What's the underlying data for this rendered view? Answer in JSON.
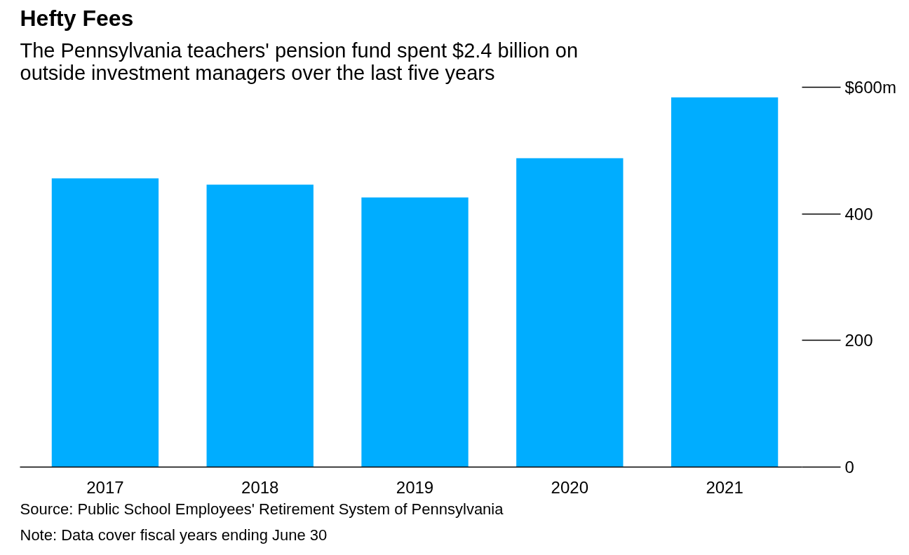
{
  "chart_data": {
    "type": "bar",
    "title": "Hefty Fees",
    "subtitle": "The Pennsylvania teachers' pension fund spent $2.4 billion on outside investment managers over the last five years",
    "categories": [
      "2017",
      "2018",
      "2019",
      "2020",
      "2021"
    ],
    "values": [
      456,
      446,
      426,
      488,
      584
    ],
    "color": "#00adff",
    "ylim": [
      0,
      600
    ],
    "yticks": [
      0,
      200,
      400,
      {
        "value": 600,
        "label": "$600m"
      }
    ],
    "grid": false,
    "annotations": [
      "Source: Public School Employees' Retirement System of Pennsylvania",
      "Note: Data cover fiscal years ending June 30"
    ]
  }
}
